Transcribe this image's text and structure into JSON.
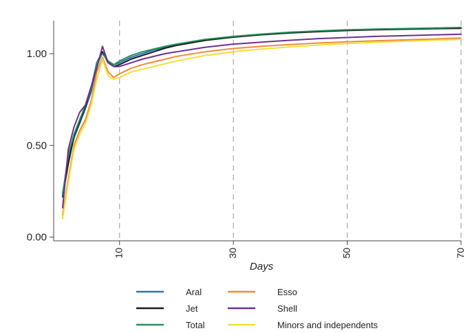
{
  "chart_data": {
    "type": "line",
    "title": "",
    "xlabel": "Days",
    "ylabel": "",
    "xlim": [
      0,
      70
    ],
    "ylim": [
      -0.02,
      1.18
    ],
    "xticks": [
      10,
      30,
      50,
      70
    ],
    "xtick_labels": [
      "10",
      "30",
      "50",
      "70"
    ],
    "yticks": [
      0.0,
      0.5,
      1.0
    ],
    "ytick_labels": [
      "0.00",
      "0.50",
      "1.00"
    ],
    "vertical_reference_lines": [
      10,
      30,
      50,
      70
    ],
    "grid": false,
    "legend_position": "bottom",
    "x": [
      0,
      1,
      2,
      3,
      4,
      5,
      6,
      7,
      8,
      9,
      10,
      12,
      14,
      16,
      18,
      20,
      25,
      30,
      35,
      40,
      45,
      50,
      55,
      60,
      65,
      70
    ],
    "series": [
      {
        "name": "Aral",
        "color": "#2f6fb5",
        "values": [
          0.24,
          0.42,
          0.54,
          0.62,
          0.7,
          0.79,
          0.93,
          1.01,
          0.95,
          0.94,
          0.95,
          0.98,
          1.0,
          1.02,
          1.035,
          1.05,
          1.075,
          1.092,
          1.105,
          1.115,
          1.122,
          1.128,
          1.132,
          1.135,
          1.138,
          1.14
        ]
      },
      {
        "name": "Jet",
        "color": "#1a1a1a",
        "values": [
          0.22,
          0.4,
          0.55,
          0.63,
          0.71,
          0.81,
          0.95,
          1.01,
          0.95,
          0.93,
          0.94,
          0.97,
          0.99,
          1.01,
          1.03,
          1.045,
          1.072,
          1.09,
          1.103,
          1.113,
          1.12,
          1.126,
          1.13,
          1.133,
          1.136,
          1.138
        ]
      },
      {
        "name": "Total",
        "color": "#22915a",
        "values": [
          0.23,
          0.45,
          0.56,
          0.64,
          0.72,
          0.81,
          0.95,
          1.0,
          0.96,
          0.94,
          0.96,
          0.99,
          1.01,
          1.025,
          1.04,
          1.052,
          1.078,
          1.094,
          1.107,
          1.117,
          1.124,
          1.13,
          1.134,
          1.137,
          1.14,
          1.143
        ]
      },
      {
        "name": "Esso",
        "color": "#f08a3c",
        "values": [
          0.12,
          0.32,
          0.5,
          0.58,
          0.64,
          0.74,
          0.9,
          0.98,
          0.9,
          0.87,
          0.89,
          0.92,
          0.94,
          0.955,
          0.97,
          0.985,
          1.01,
          1.028,
          1.04,
          1.05,
          1.058,
          1.065,
          1.07,
          1.075,
          1.08,
          1.085
        ]
      },
      {
        "name": "Shell",
        "color": "#6b2f8f",
        "values": [
          0.16,
          0.48,
          0.6,
          0.68,
          0.72,
          0.82,
          0.92,
          1.04,
          0.95,
          0.93,
          0.93,
          0.95,
          0.97,
          0.985,
          1.0,
          1.01,
          1.035,
          1.052,
          1.063,
          1.073,
          1.082,
          1.088,
          1.094,
          1.098,
          1.102,
          1.106
        ]
      },
      {
        "name": "Minors and independents",
        "color": "#f2df33",
        "values": [
          0.1,
          0.3,
          0.48,
          0.56,
          0.62,
          0.72,
          0.86,
          0.97,
          0.88,
          0.86,
          0.87,
          0.9,
          0.915,
          0.93,
          0.945,
          0.96,
          0.99,
          1.01,
          1.025,
          1.037,
          1.047,
          1.055,
          1.062,
          1.068,
          1.073,
          1.078
        ]
      }
    ]
  }
}
